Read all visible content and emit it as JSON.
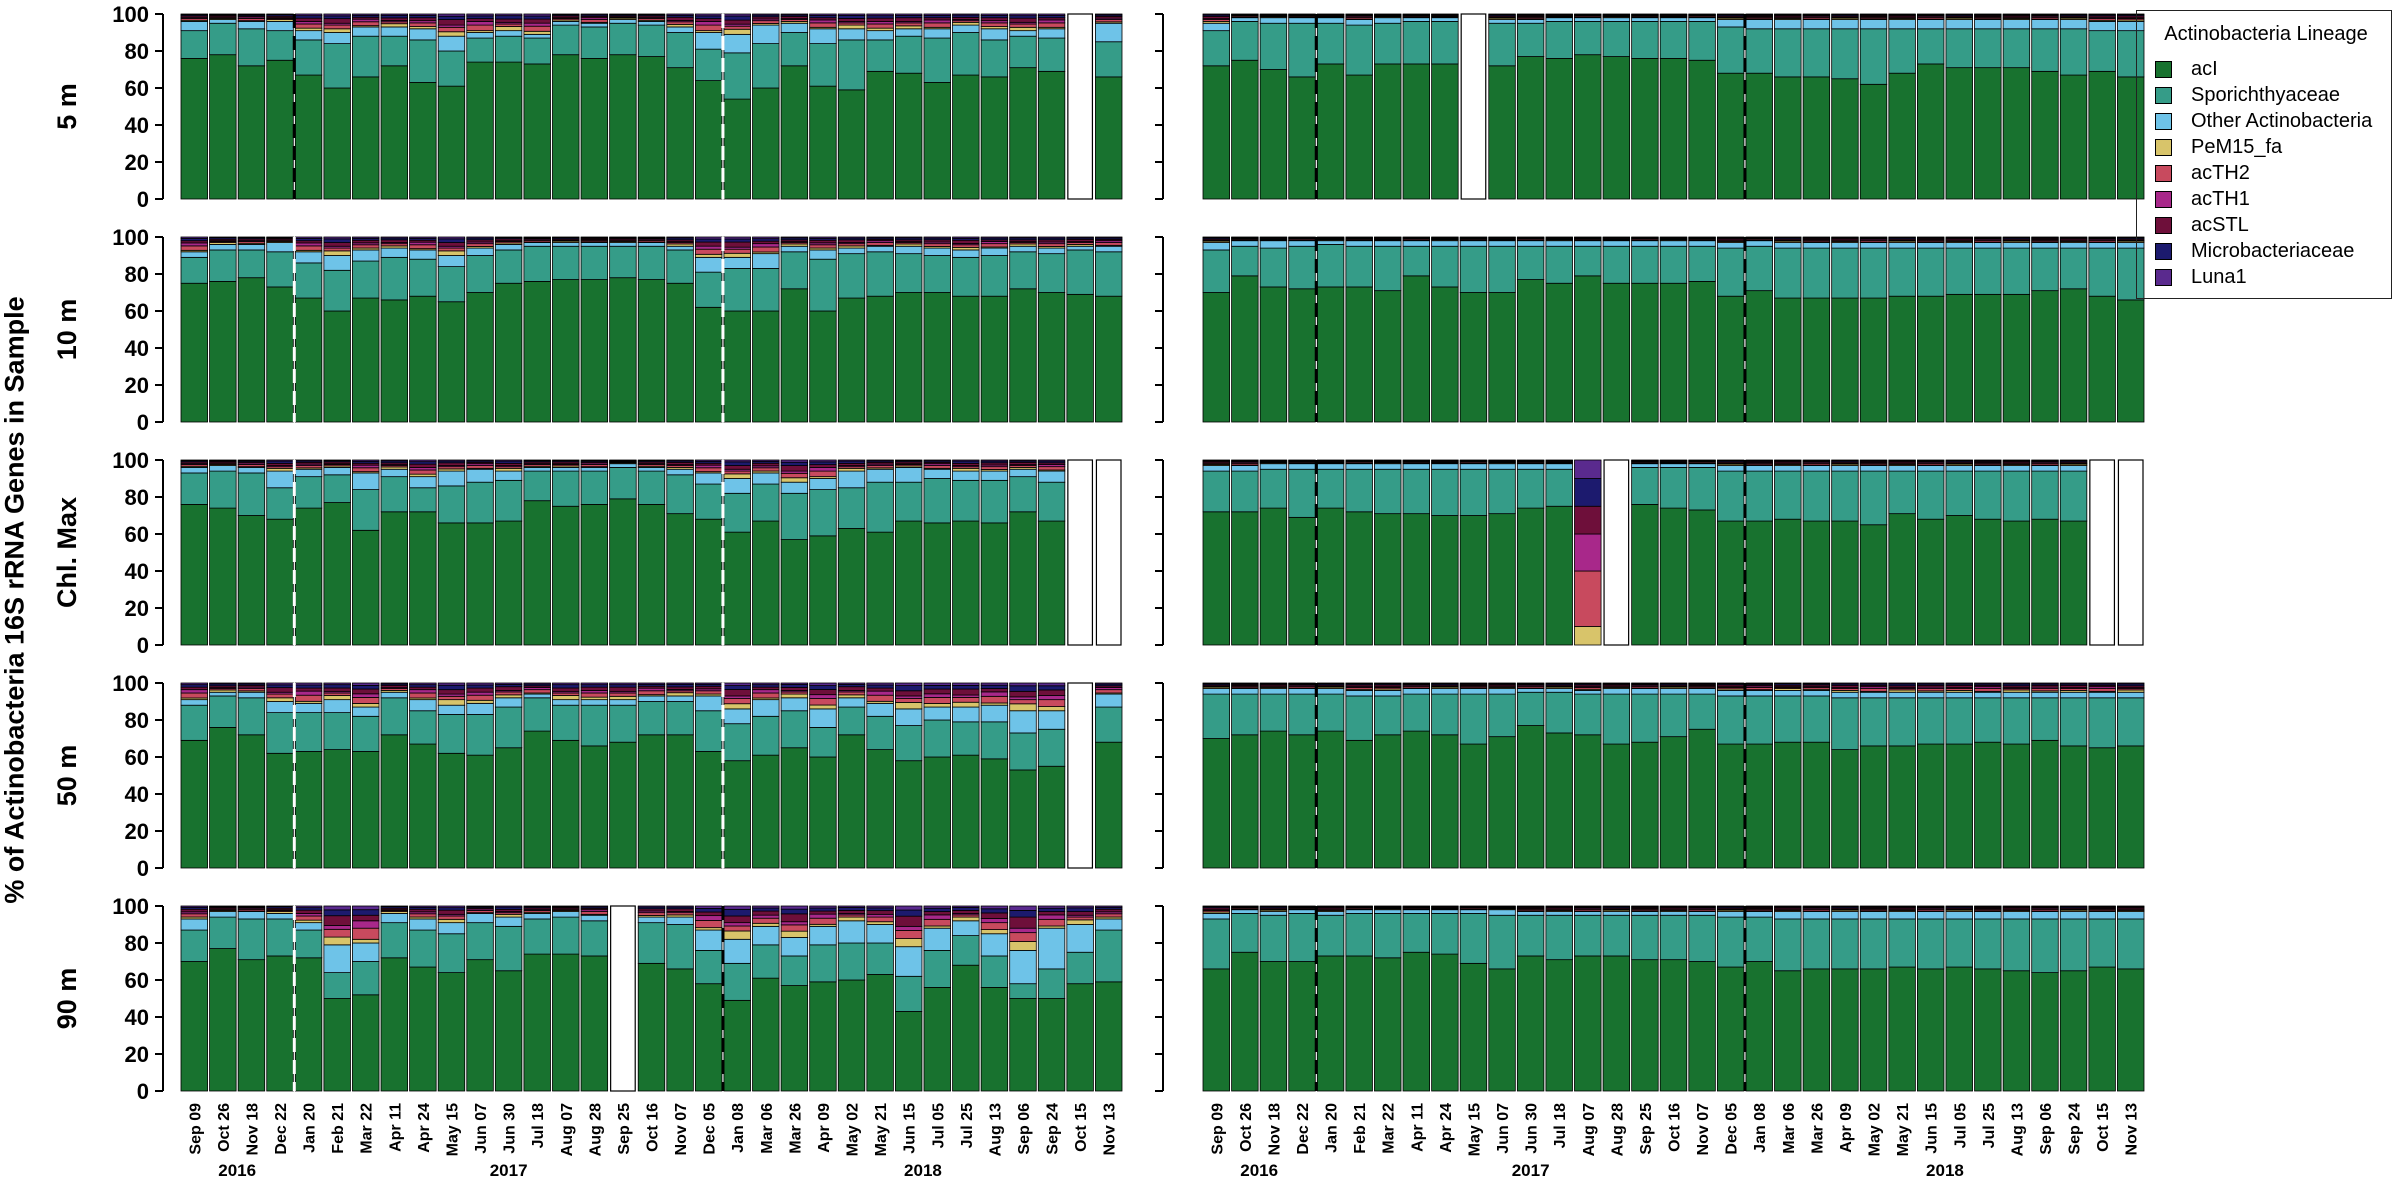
{
  "chart_data": {
    "type": "bar",
    "stacked": true,
    "ylabel": "% of Actinobacteria 16S rRNA Genes in Sample",
    "ylim": [
      0,
      100
    ],
    "yticks": [
      0,
      20,
      40,
      60,
      80,
      100
    ],
    "lineages": [
      {
        "name": "acI",
        "color": "#18722f"
      },
      {
        "name": "Sporichthyaceae",
        "color": "#359c88"
      },
      {
        "name": "Other Actinobacteria",
        "color": "#6ec3e8"
      },
      {
        "name": "PeM15_fa",
        "color": "#d8c46a"
      },
      {
        "name": "acTH2",
        "color": "#c84a5e"
      },
      {
        "name": "acTH1",
        "color": "#a8288a"
      },
      {
        "name": "acSTL",
        "color": "#6e0f3a"
      },
      {
        "name": "Microbacteriaceae",
        "color": "#1c1a6e"
      },
      {
        "name": "Luna1",
        "color": "#5a2a8e"
      }
    ],
    "depths": [
      "5 m",
      "10 m",
      "Chl. Max",
      "50 m",
      "90 m"
    ],
    "categories": [
      "Sep 09",
      "Oct 26",
      "Nov 18",
      "Dec 22",
      "Jan 20",
      "Feb 21",
      "Mar 22",
      "Apr 11",
      "Apr 24",
      "May 15",
      "Jun 07",
      "Jun 30",
      "Jul 18",
      "Aug 07",
      "Aug 28",
      "Sep 25",
      "Oct 16",
      "Nov 07",
      "Dec 05",
      "Jan 08",
      "Mar 06",
      "Mar 26",
      "Apr 09",
      "May 02",
      "May 21",
      "Jun 15",
      "Jul 05",
      "Jul 25",
      "Aug 13",
      "Sep 06",
      "Sep 24",
      "Oct 15",
      "Nov 13"
    ],
    "years": [
      {
        "label": "2016",
        "first": 0,
        "last": 3
      },
      {
        "label": "2017",
        "first": 4,
        "last": 18
      },
      {
        "label": "2018",
        "first": 19,
        "last": 32
      }
    ],
    "year_boundaries_after": [
      3,
      18
    ],
    "panels": [
      {
        "depth": "5 m",
        "column": "left",
        "missing": [
          31
        ],
        "acI": [
          76,
          78,
          72,
          75,
          67,
          60,
          66,
          72,
          63,
          61,
          74,
          74,
          73,
          78,
          76,
          78,
          77,
          71,
          64,
          54,
          60,
          72,
          61,
          59,
          69,
          68,
          63,
          67,
          66,
          71,
          69,
          0,
          66
        ],
        "Spor": [
          15,
          17,
          20,
          16,
          19,
          24,
          22,
          16,
          23,
          19,
          13,
          14,
          14,
          16,
          17,
          17,
          17,
          19,
          17,
          25,
          24,
          18,
          23,
          27,
          17,
          20,
          24,
          23,
          20,
          17,
          18,
          0,
          19
        ],
        "Other": [
          5,
          2,
          4,
          5,
          5,
          6,
          5,
          5,
          6,
          8,
          3,
          3,
          2,
          2,
          2,
          2,
          2,
          3,
          9,
          10,
          10,
          5,
          8,
          6,
          5,
          4,
          5,
          4,
          6,
          3,
          5,
          0,
          10
        ]
      },
      {
        "depth": "5 m",
        "column": "right",
        "missing": [
          9
        ],
        "acI": [
          72,
          75,
          70,
          66,
          73,
          67,
          73,
          73,
          73,
          0,
          72,
          77,
          76,
          78,
          77,
          76,
          76,
          75,
          68,
          68,
          66,
          66,
          65,
          62,
          68,
          73,
          71,
          71,
          71,
          69,
          67,
          69,
          66
        ],
        "Spor": [
          19,
          21,
          25,
          29,
          22,
          27,
          22,
          23,
          23,
          0,
          23,
          18,
          20,
          18,
          19,
          20,
          20,
          21,
          25,
          24,
          26,
          26,
          27,
          30,
          24,
          19,
          21,
          21,
          21,
          23,
          25,
          22,
          25
        ],
        "Other": [
          4,
          2,
          3,
          3,
          3,
          3,
          3,
          2,
          2,
          0,
          2,
          2,
          2,
          2,
          2,
          2,
          2,
          2,
          4,
          5,
          5,
          5,
          5,
          5,
          5,
          5,
          5,
          5,
          5,
          5,
          5,
          5,
          5
        ]
      },
      {
        "depth": "10 m",
        "column": "left",
        "missing": [],
        "acI": [
          75,
          76,
          78,
          73,
          67,
          60,
          67,
          66,
          68,
          65,
          70,
          75,
          76,
          77,
          77,
          78,
          77,
          75,
          62,
          60,
          60,
          72,
          60,
          67,
          68,
          70,
          70,
          68,
          68,
          72,
          70,
          69,
          68
        ],
        "Spor": [
          14,
          17,
          15,
          19,
          19,
          22,
          20,
          23,
          20,
          19,
          20,
          18,
          19,
          18,
          18,
          17,
          18,
          18,
          19,
          23,
          23,
          20,
          28,
          24,
          24,
          21,
          20,
          21,
          22,
          20,
          21,
          24,
          24
        ],
        "Other": [
          3,
          3,
          3,
          5,
          6,
          8,
          6,
          5,
          5,
          6,
          4,
          3,
          2,
          2,
          2,
          2,
          2,
          2,
          8,
          6,
          8,
          3,
          5,
          3,
          3,
          4,
          4,
          4,
          4,
          3,
          3,
          2,
          3
        ]
      },
      {
        "depth": "10 m",
        "column": "right",
        "missing": [],
        "acI": [
          70,
          79,
          73,
          72,
          73,
          73,
          71,
          79,
          73,
          70,
          70,
          77,
          75,
          79,
          75,
          75,
          75,
          76,
          68,
          71,
          67,
          67,
          67,
          67,
          68,
          68,
          69,
          69,
          69,
          71,
          72,
          68,
          66
        ],
        "Spor": [
          23,
          16,
          21,
          23,
          23,
          22,
          24,
          16,
          22,
          25,
          25,
          18,
          20,
          16,
          20,
          20,
          20,
          19,
          26,
          24,
          27,
          27,
          27,
          27,
          26,
          26,
          25,
          25,
          25,
          23,
          22,
          26,
          28
        ],
        "Other": [
          4,
          3,
          4,
          3,
          2,
          3,
          3,
          3,
          3,
          3,
          3,
          3,
          3,
          3,
          3,
          3,
          3,
          3,
          3,
          3,
          3,
          3,
          3,
          3,
          3,
          3,
          3,
          3,
          3,
          3,
          3,
          3,
          3
        ]
      },
      {
        "depth": "Chl. Max",
        "column": "left",
        "missing": [
          31,
          32
        ],
        "acI": [
          76,
          74,
          70,
          68,
          74,
          77,
          62,
          72,
          72,
          66,
          66,
          67,
          78,
          75,
          76,
          79,
          76,
          71,
          68,
          61,
          67,
          57,
          59,
          63,
          61,
          67,
          66,
          67,
          66,
          72,
          67,
          0,
          0
        ],
        "Spor": [
          17,
          20,
          23,
          17,
          17,
          15,
          22,
          19,
          13,
          20,
          22,
          22,
          16,
          19,
          18,
          17,
          18,
          21,
          19,
          21,
          20,
          25,
          25,
          22,
          27,
          21,
          24,
          22,
          23,
          19,
          21,
          0,
          0
        ],
        "Other": [
          3,
          3,
          3,
          9,
          4,
          4,
          9,
          4,
          6,
          8,
          7,
          5,
          2,
          2,
          2,
          2,
          2,
          3,
          6,
          8,
          6,
          6,
          6,
          9,
          7,
          8,
          5,
          5,
          5,
          4,
          6,
          0,
          0
        ]
      },
      {
        "depth": "Chl. Max",
        "column": "right",
        "missing": [
          14,
          31,
          32
        ],
        "acI": [
          72,
          72,
          74,
          69,
          74,
          72,
          71,
          71,
          70,
          70,
          71,
          74,
          75,
          0,
          69,
          76,
          74,
          73,
          67,
          67,
          68,
          67,
          67,
          65,
          71,
          68,
          70,
          68,
          67,
          68,
          67,
          0,
          0
        ],
        "Spor": [
          22,
          22,
          21,
          26,
          21,
          23,
          24,
          24,
          25,
          25,
          24,
          21,
          20,
          0,
          27,
          20,
          22,
          23,
          27,
          27,
          26,
          27,
          27,
          29,
          23,
          26,
          24,
          26,
          27,
          26,
          27,
          0,
          0
        ],
        "Other": [
          3,
          3,
          3,
          3,
          3,
          3,
          3,
          3,
          3,
          3,
          3,
          3,
          3,
          0,
          2,
          2,
          2,
          2,
          3,
          3,
          3,
          3,
          3,
          3,
          3,
          3,
          3,
          3,
          3,
          3,
          3,
          0,
          0
        ]
      },
      {
        "depth": "50 m",
        "column": "left",
        "missing": [
          31
        ],
        "acI": [
          69,
          76,
          72,
          62,
          63,
          64,
          63,
          72,
          67,
          62,
          61,
          65,
          74,
          69,
          66,
          68,
          72,
          72,
          63,
          58,
          61,
          65,
          60,
          72,
          64,
          58,
          60,
          61,
          59,
          53,
          55,
          0,
          68
        ],
        "Spor": [
          19,
          17,
          20,
          22,
          21,
          20,
          19,
          20,
          18,
          21,
          22,
          22,
          18,
          19,
          22,
          20,
          18,
          18,
          22,
          20,
          21,
          20,
          16,
          15,
          18,
          19,
          20,
          18,
          20,
          20,
          20,
          0,
          19
        ],
        "Other": [
          3,
          2,
          3,
          6,
          5,
          7,
          5,
          3,
          6,
          5,
          6,
          5,
          2,
          3,
          3,
          3,
          3,
          3,
          8,
          8,
          9,
          7,
          10,
          5,
          7,
          9,
          7,
          8,
          9,
          12,
          10,
          0,
          7
        ]
      },
      {
        "depth": "50 m",
        "column": "right",
        "missing": [],
        "acI": [
          70,
          72,
          74,
          72,
          74,
          69,
          72,
          74,
          72,
          67,
          71,
          77,
          73,
          72,
          67,
          68,
          71,
          75,
          67,
          67,
          68,
          68,
          64,
          66,
          66,
          67,
          67,
          68,
          67,
          69,
          66,
          65,
          66
        ],
        "Spor": [
          24,
          22,
          20,
          22,
          20,
          24,
          21,
          20,
          22,
          27,
          23,
          18,
          22,
          22,
          27,
          26,
          23,
          19,
          26,
          26,
          25,
          25,
          28,
          26,
          26,
          25,
          25,
          24,
          25,
          23,
          26,
          27,
          26
        ],
        "Other": [
          3,
          3,
          3,
          3,
          3,
          3,
          3,
          3,
          3,
          3,
          3,
          2,
          2,
          2,
          3,
          3,
          3,
          3,
          3,
          3,
          3,
          3,
          3,
          3,
          3,
          3,
          3,
          3,
          3,
          3,
          3,
          3,
          3
        ]
      },
      {
        "depth": "90 m",
        "column": "left",
        "missing": [
          15
        ],
        "acI": [
          70,
          77,
          71,
          73,
          72,
          50,
          52,
          72,
          67,
          64,
          71,
          65,
          74,
          74,
          73,
          0,
          69,
          66,
          58,
          49,
          61,
          57,
          59,
          60,
          63,
          43,
          56,
          68,
          56,
          50,
          50,
          58,
          59
        ],
        "Spor": [
          17,
          17,
          22,
          20,
          15,
          14,
          18,
          19,
          20,
          21,
          20,
          24,
          19,
          20,
          19,
          0,
          22,
          24,
          18,
          20,
          18,
          16,
          20,
          20,
          17,
          19,
          20,
          16,
          17,
          8,
          16,
          17,
          28
        ],
        "Other": [
          6,
          3,
          4,
          3,
          4,
          15,
          10,
          5,
          6,
          6,
          5,
          5,
          3,
          3,
          3,
          0,
          3,
          4,
          11,
          13,
          10,
          10,
          10,
          12,
          10,
          16,
          12,
          8,
          12,
          18,
          22,
          15,
          6
        ]
      },
      {
        "depth": "90 m",
        "column": "right",
        "missing": [],
        "acI": [
          66,
          75,
          70,
          70,
          73,
          73,
          72,
          75,
          74,
          69,
          66,
          73,
          71,
          73,
          73,
          71,
          71,
          70,
          67,
          70,
          65,
          66,
          66,
          66,
          67,
          66,
          67,
          66,
          65,
          64,
          65,
          67,
          66
        ],
        "Spor": [
          27,
          21,
          25,
          26,
          22,
          23,
          24,
          21,
          22,
          27,
          29,
          22,
          24,
          22,
          22,
          24,
          24,
          25,
          27,
          24,
          28,
          27,
          27,
          27,
          26,
          27,
          26,
          27,
          28,
          29,
          28,
          26,
          27
        ],
        "Other": [
          3,
          2,
          2,
          2,
          2,
          2,
          2,
          2,
          2,
          2,
          3,
          2,
          2,
          2,
          2,
          2,
          2,
          2,
          3,
          3,
          4,
          4,
          4,
          4,
          4,
          4,
          4,
          4,
          4,
          4,
          4,
          4,
          4
        ]
      }
    ]
  }
}
